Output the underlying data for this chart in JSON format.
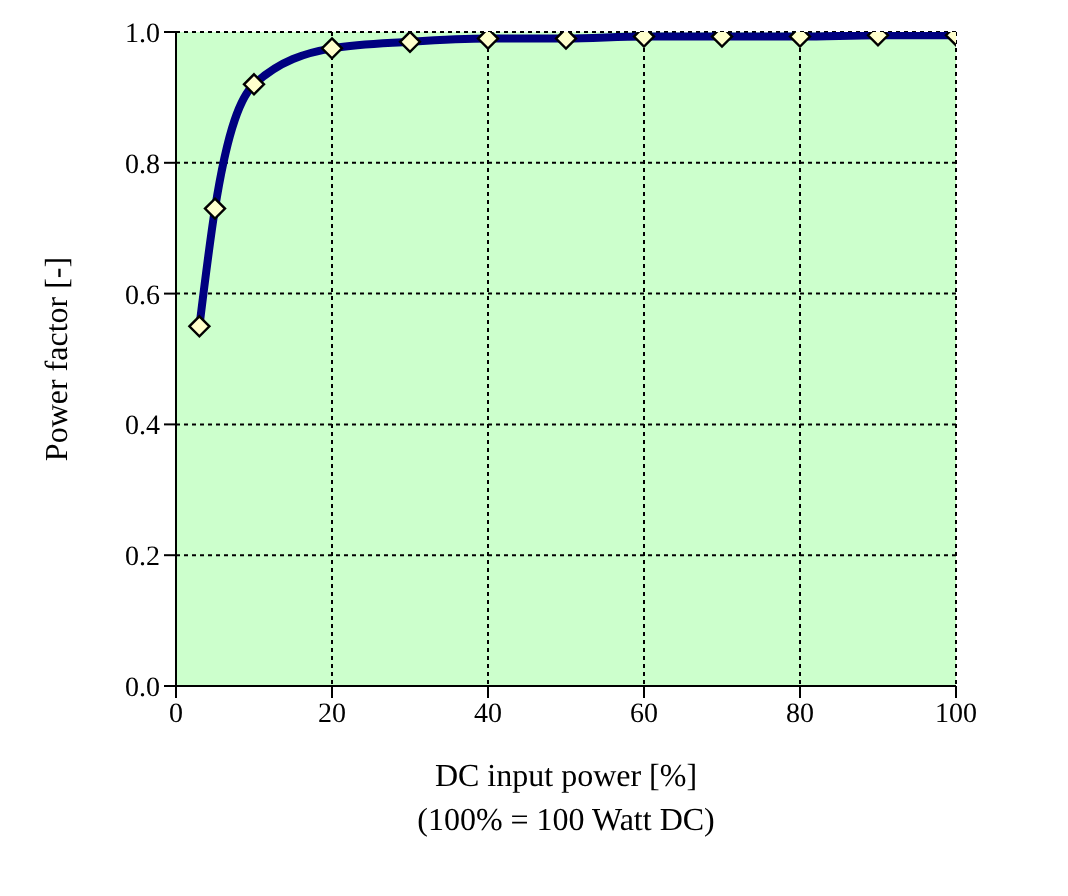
{
  "chart_data": {
    "type": "line",
    "xlabel": "DC input power [%]",
    "ylabel": "Power factor [-]",
    "annotations": [
      "(100% = 100 Watt DC)"
    ],
    "x": [
      3,
      5,
      10,
      20,
      30,
      40,
      50,
      60,
      70,
      80,
      90,
      100
    ],
    "series": [
      {
        "color": "#000080",
        "values": [
          0.55,
          0.73,
          0.92,
          0.975,
          0.985,
          0.99,
          0.99,
          0.993,
          0.993,
          0.993,
          0.995,
          0.995
        ]
      }
    ],
    "xlim": [
      0,
      100
    ],
    "xticks": [
      0,
      20,
      40,
      60,
      80,
      100
    ],
    "ylim": [
      0,
      1
    ],
    "yticks": [
      {
        "value": 0,
        "label": "0.0"
      },
      {
        "value": 0.2,
        "label": "0.2"
      },
      {
        "value": 0.4,
        "label": "0.4"
      },
      {
        "value": 0.6,
        "label": "0.6"
      },
      {
        "value": 0.8,
        "label": "0.8"
      },
      {
        "value": 1,
        "label": "1.0"
      }
    ],
    "grid": true,
    "marker": "diamond",
    "line_style": "solid"
  }
}
